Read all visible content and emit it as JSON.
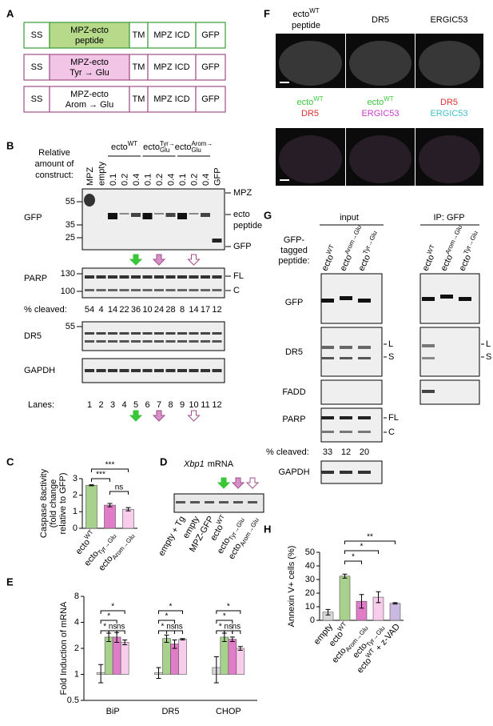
{
  "panel_labels": [
    "A",
    "B",
    "C",
    "D",
    "E",
    "F",
    "G",
    "H"
  ],
  "A": {
    "constructs": [
      {
        "ss": "SS",
        "ecto": [
          "MPZ-ecto",
          "peptide"
        ],
        "tm": "TM",
        "icd": "MPZ ICD",
        "gfp": "GFP"
      },
      {
        "ss": "SS",
        "ecto": [
          "MPZ-ecto",
          "Tyr → Glu"
        ],
        "tm": "TM",
        "icd": "MPZ ICD",
        "gfp": "GFP"
      },
      {
        "ss": "SS",
        "ecto": [
          "MPZ-ecto",
          "Arom → Glu"
        ],
        "tm": "TM",
        "icd": "MPZ ICD",
        "gfp": "GFP"
      }
    ]
  },
  "B": {
    "amount_label": [
      "Relative",
      "amount of",
      "construct:"
    ],
    "groups": [
      {
        "base": "ecto",
        "sup": "WT"
      },
      {
        "base": "ecto",
        "sup": "Tyr→",
        "sub": "Glu"
      },
      {
        "base": "ecto",
        "sup": "Arom→",
        "sub": "Glu"
      }
    ],
    "lane_headers": [
      "MPZ",
      "empty",
      "0.1",
      "0.2",
      "0.4",
      "0.1",
      "0.2",
      "0.4",
      "0.1",
      "0.2",
      "0.4",
      "GFP"
    ],
    "gfp_blot": {
      "label": "GFP",
      "markers": [
        55,
        35,
        25
      ],
      "bands": [
        "MPZ",
        "ecto",
        "peptide",
        "GFP"
      ]
    },
    "parp_blot": {
      "label": "PARP",
      "markers": [
        130,
        100
      ],
      "bands": [
        "FL",
        "C"
      ]
    },
    "cleaved_label": "% cleaved:",
    "cleaved": [
      54,
      4,
      14,
      22,
      36,
      10,
      24,
      28,
      8,
      14,
      17,
      12
    ],
    "dr5_blot": {
      "label": "DR5",
      "markers": [
        55
      ]
    },
    "gapdh_blot": {
      "label": "GAPDH"
    },
    "lanes_label": "Lanes:",
    "lanes": [
      1,
      2,
      3,
      4,
      5,
      6,
      7,
      8,
      9,
      10,
      11,
      12
    ]
  },
  "D": {
    "title_italic": "Xbp1",
    "title": "mRNA",
    "lanes": [
      {
        "base": "empty + Tg"
      },
      {
        "base": "empty"
      },
      {
        "base": "MPZ-GFP"
      },
      {
        "base": "ecto",
        "sup": "WT"
      },
      {
        "base": "ecto",
        "sub": "Tyr→Glu"
      },
      {
        "base": "ecto",
        "sub": "Arom→Glu"
      }
    ]
  },
  "F": {
    "top_labels": [
      {
        "base": "ecto",
        "sup": "WT"
      },
      {
        "base": "peptide"
      },
      {
        "base": "DR5"
      },
      {
        "base": "ERGIC53"
      }
    ],
    "bottom_labels": [
      [
        {
          "base": "ecto",
          "sup": "WT"
        },
        {
          "base": "DR5"
        }
      ],
      [
        {
          "base": "ecto",
          "sup": "WT"
        },
        {
          "base": "ERGIC53"
        }
      ],
      [
        {
          "base": "DR5"
        },
        {
          "base": "ERGIC53"
        }
      ]
    ]
  },
  "G": {
    "input": "input",
    "ip": "IP: GFP",
    "tag_label": [
      "GFP-",
      "tagged",
      "peptide:"
    ],
    "lanes": [
      {
        "base": "ecto",
        "sup": "WT"
      },
      {
        "base": "ecto",
        "sup": "Arom→Glu"
      },
      {
        "base": "ecto",
        "sup": "Tyr→Glu"
      }
    ],
    "blots": {
      "gfp": "GFP",
      "dr5": "DR5",
      "fadd": "FADD",
      "parp": "PARP",
      "gapdh": "GAPDH"
    },
    "dr5_bands": [
      "L",
      "S"
    ],
    "parp_bands": [
      "FL",
      "C"
    ],
    "cleaved_label": "% cleaved:",
    "cleaved": [
      33,
      12,
      20
    ]
  },
  "chart_data": [
    {
      "type": "bar",
      "ylabel": [
        "Caspase 8activity",
        "(fold change",
        "relative to GFP)"
      ],
      "categories": [
        {
          "base": "ecto",
          "sup": "WT"
        },
        {
          "base": "ecto",
          "sub": "Tyr→Glu"
        },
        {
          "base": "ecto",
          "sub": "Arom→Glu"
        }
      ],
      "values": [
        2.6,
        1.4,
        1.15
      ],
      "errors": [
        0.03,
        0.1,
        0.1
      ],
      "colors": [
        "#a9d18e",
        "#e07cc8",
        "#f8cdeb"
      ],
      "ylim": [
        0,
        3
      ],
      "yticks": [
        0,
        1,
        2,
        3
      ],
      "significance": [
        "***",
        "***",
        "ns"
      ]
    },
    {
      "type": "bar",
      "log_scale": true,
      "ylabel": "Fold Induction of mRNA",
      "categories": [
        "BiP",
        "DR5",
        "CHOP"
      ],
      "series": [
        {
          "color": "#d9d9d9",
          "values": [
            1.05,
            1.05,
            1.2
          ],
          "errors": [
            0.25,
            0.15,
            0.4
          ]
        },
        {
          "color": "#a9d18e",
          "values": [
            2.7,
            2.6,
            2.7
          ],
          "errors": [
            0.3,
            0.25,
            0.3
          ]
        },
        {
          "color": "#e07cc8",
          "values": [
            2.7,
            2.25,
            2.55
          ],
          "errors": [
            0.35,
            0.25,
            0.15
          ]
        },
        {
          "color": "#f8cdeb",
          "values": [
            2.35,
            2.55,
            2.0
          ],
          "errors": [
            0.15,
            0.05,
            0.1
          ]
        }
      ],
      "ylim": [
        0.5,
        8
      ],
      "yticks": [
        0.5,
        1,
        2,
        4,
        8
      ],
      "significance": [
        [
          "*",
          "*",
          "*",
          "ns",
          "ns"
        ],
        [
          "*",
          "*",
          "*",
          "ns",
          "ns"
        ],
        [
          "*",
          "*",
          "*",
          "ns",
          "ns"
        ]
      ]
    },
    {
      "type": "bar",
      "ylabel": "Annexin V+ cells (%)",
      "categories": [
        {
          "base": "empty"
        },
        {
          "base": "ecto",
          "sup": "WT"
        },
        {
          "base": "ecto",
          "sub": "Arom→Glu"
        },
        {
          "base": "ecto",
          "sub": "Tyr→Glu"
        },
        {
          "base": "ecto",
          "sup": "WT",
          "after": "+ z-VAD"
        }
      ],
      "values": [
        6,
        32.5,
        14,
        17,
        12.5
      ],
      "errors": [
        2,
        1.5,
        5,
        4,
        0.5
      ],
      "colors": [
        "#d9d9d9",
        "#a9d18e",
        "#e07cc8",
        "#f8cdeb",
        "#c9b8e0"
      ],
      "ylim": [
        0,
        50
      ],
      "yticks": [
        0,
        10,
        20,
        30,
        40,
        50
      ],
      "significance": [
        "**",
        "*",
        "*"
      ]
    }
  ]
}
